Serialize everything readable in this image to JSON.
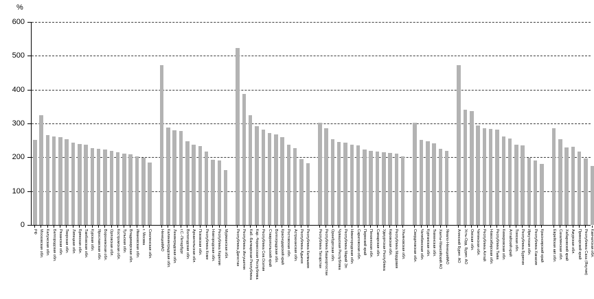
{
  "chart_data": {
    "type": "bar",
    "title": "",
    "unit_label": "%",
    "xlabel": "",
    "ylabel": "%",
    "ylim": [
      0,
      600
    ],
    "yticks": [
      0,
      100,
      200,
      300,
      400,
      500,
      600
    ],
    "grid": "horizontal dashed",
    "legend": "none",
    "bar_color": "#b3b3b3",
    "axis_color": "#000000",
    "groups": [
      {
        "name": "rf-central",
        "bars": [
          {
            "label": "РФ",
            "value": 252
          },
          {
            "label": "Московская обл.",
            "value": 324
          },
          {
            "label": "Калужская обл.",
            "value": 266
          },
          {
            "label": "Белгородская обл.",
            "value": 262
          },
          {
            "label": "Рязанская обл.",
            "value": 259
          },
          {
            "label": "Тверская обл.",
            "value": 253
          },
          {
            "label": "Липецкая обл.",
            "value": 244
          },
          {
            "label": "Брянская обл.",
            "value": 239
          },
          {
            "label": "Тамбовская обл.",
            "value": 237
          },
          {
            "label": "Курская обл.",
            "value": 228
          },
          {
            "label": "Ярославская обл.",
            "value": 225
          },
          {
            "label": "Воронежская обл.",
            "value": 223
          },
          {
            "label": "Орловская обл.",
            "value": 218
          },
          {
            "label": "Костромская обл.",
            "value": 214
          },
          {
            "label": "Тульская обл.",
            "value": 211
          },
          {
            "label": "Владимирская обл.",
            "value": 209
          },
          {
            "label": "Ивановская обл.",
            "value": 203
          },
          {
            "label": "г. Москва",
            "value": 198
          },
          {
            "label": "Смоленская обл.",
            "value": 184
          }
        ]
      },
      {
        "name": "northwest",
        "bars": [
          {
            "label": "НенецкийАО",
            "value": 472
          },
          {
            "label": "Калининградская обл.",
            "value": 288
          },
          {
            "label": "Ленинградская обл.",
            "value": 280
          },
          {
            "label": "г.С.-Петербург",
            "value": 277
          },
          {
            "label": "Вологодская обл.",
            "value": 247
          },
          {
            "label": "Архангельская обл.",
            "value": 237
          },
          {
            "label": "Псковская обл.",
            "value": 233
          },
          {
            "label": "Республика Коми",
            "value": 216
          },
          {
            "label": "Новгородская обл.",
            "value": 192
          },
          {
            "label": "Республика Карелия",
            "value": 190
          },
          {
            "label": "Мурманская обл.",
            "value": 163
          }
        ]
      },
      {
        "name": "south",
        "bars": [
          {
            "label": "Республика Дагестан",
            "value": 522
          },
          {
            "label": "Республика Ингушетия",
            "value": 388
          },
          {
            "label": "Каб.-Балкарская Республика",
            "value": 325
          },
          {
            "label": "Кар.-Черкесская Республика",
            "value": 292
          },
          {
            "label": "Республика Сев.Осетия",
            "value": 281
          },
          {
            "label": "Ставропольский край",
            "value": 272
          },
          {
            "label": "Волгоградская обл.",
            "value": 268
          },
          {
            "label": "Краснодарский край",
            "value": 260
          },
          {
            "label": "Ростовская обл.",
            "value": 237
          },
          {
            "label": "Астраханская обл.",
            "value": 227
          },
          {
            "label": "Республика Адыгея",
            "value": 195
          },
          {
            "label": "Республика Калмыкия",
            "value": 183
          }
        ]
      },
      {
        "name": "volga",
        "bars": [
          {
            "label": "Республика Татарстан",
            "value": 303
          },
          {
            "label": "Республика Башкортостан",
            "value": 286
          },
          {
            "label": "Оренбургская обл.",
            "value": 254
          },
          {
            "label": "Чувашская Республика",
            "value": 245
          },
          {
            "label": "Республика Марий Эл",
            "value": 244
          },
          {
            "label": "Нижегородская обл.",
            "value": 238
          },
          {
            "label": "Саратовская обл.",
            "value": 235
          },
          {
            "label": "Пермский край",
            "value": 222
          },
          {
            "label": "Пензенская обл.",
            "value": 219
          },
          {
            "label": "Самарская обл.",
            "value": 217
          },
          {
            "label": "Удмуртская Республика",
            "value": 215
          },
          {
            "label": "Кировская обл.",
            "value": 213
          },
          {
            "label": "Республика Мордовия",
            "value": 211
          },
          {
            "label": "Ульяновская обл.",
            "value": 202
          }
        ]
      },
      {
        "name": "urals",
        "bars": [
          {
            "label": "Свердловская обл.",
            "value": 303
          },
          {
            "label": "Челябинская обл.",
            "value": 251
          },
          {
            "label": "Курганская обл.",
            "value": 247
          },
          {
            "label": "Тюменская обл.",
            "value": 242
          },
          {
            "label": "Ханты-Мансийский АО",
            "value": 224
          },
          {
            "label": "Ямало-НенецкийАО",
            "value": 219
          }
        ]
      },
      {
        "name": "siberia",
        "bars": [
          {
            "label": "Агинский Бурят. АО",
            "value": 472
          },
          {
            "label": "Усть-Орд. Бурят. АО",
            "value": 341
          },
          {
            "label": "Омская обл.",
            "value": 336
          },
          {
            "label": "Читинская обл.",
            "value": 294
          },
          {
            "label": "Республика Алтай",
            "value": 285
          },
          {
            "label": "Новосибирская обл.",
            "value": 283
          },
          {
            "label": "Республика Тыва",
            "value": 281
          },
          {
            "label": "Кемеровская обл.",
            "value": 261
          },
          {
            "label": "Алтайский край",
            "value": 256
          },
          {
            "label": "Томская обл.",
            "value": 237
          },
          {
            "label": "Республика Бурятия",
            "value": 236
          },
          {
            "label": "Иркутская обл.",
            "value": 199
          },
          {
            "label": "Республика Хакасия",
            "value": 190
          },
          {
            "label": "Красноярский край",
            "value": 180
          }
        ]
      },
      {
        "name": "far-east",
        "bars": [
          {
            "label": "Еврейская авт.обл.",
            "value": 285
          },
          {
            "label": "Сахалинская обл.",
            "value": 253
          },
          {
            "label": "Хабаровский край",
            "value": 230
          },
          {
            "label": "Амурская обл.",
            "value": 231
          },
          {
            "label": "Приморский край",
            "value": 216
          },
          {
            "label": "Республика Саха (Якутия)",
            "value": 196
          },
          {
            "label": "Камчатская обл.",
            "value": 174
          }
        ]
      }
    ]
  }
}
